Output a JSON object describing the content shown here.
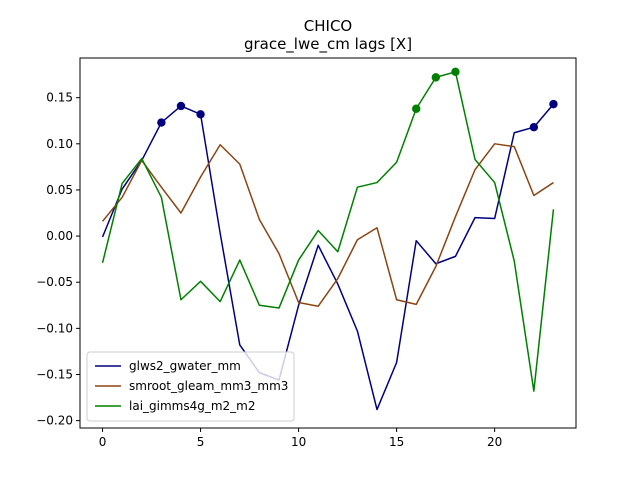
{
  "chart_data": {
    "type": "line",
    "title": "CHICO",
    "subtitle": "grace_lwe_cm lags [X]",
    "xlabel": "",
    "ylabel": "",
    "xlim": [
      -1.15,
      24.15
    ],
    "ylim": [
      -0.208,
      0.193
    ],
    "xticks": [
      0,
      5,
      10,
      15,
      20
    ],
    "xtick_labels": [
      "0",
      "5",
      "10",
      "15",
      "20"
    ],
    "yticks": [
      -0.2,
      -0.15,
      -0.1,
      -0.05,
      0.0,
      0.05,
      0.1,
      0.15
    ],
    "ytick_labels": [
      "−0.20",
      "−0.15",
      "−0.10",
      "−0.05",
      "0.00",
      "0.05",
      "0.10",
      "0.15"
    ],
    "grid": false,
    "legend_position": "lower-left",
    "x": [
      0,
      1,
      2,
      3,
      4,
      5,
      6,
      7,
      8,
      9,
      10,
      11,
      12,
      13,
      14,
      15,
      16,
      17,
      18,
      19,
      20,
      21,
      22,
      23
    ],
    "series": [
      {
        "name": "glws2_gwater_mm",
        "color": "#000080",
        "values": [
          -0.001,
          0.051,
          0.082,
          0.123,
          0.141,
          0.132,
          0.003,
          -0.118,
          -0.148,
          -0.156,
          -0.075,
          -0.01,
          -0.052,
          -0.103,
          -0.188,
          -0.137,
          -0.005,
          -0.03,
          -0.022,
          0.02,
          0.019,
          0.112,
          0.118,
          0.143
        ],
        "markers": [
          3,
          4,
          5,
          22,
          23
        ]
      },
      {
        "name": "smroot_gleam_mm3_mm3",
        "color": "#8B4513",
        "values": [
          0.016,
          0.042,
          0.082,
          0.053,
          0.025,
          0.064,
          0.099,
          0.078,
          0.018,
          -0.019,
          -0.072,
          -0.076,
          -0.046,
          -0.004,
          0.009,
          -0.069,
          -0.074,
          -0.033,
          0.021,
          0.072,
          0.1,
          0.097,
          0.044,
          0.058
        ],
        "markers": []
      },
      {
        "name": "lai_gimms4g_m2_m2",
        "color": "#008000",
        "values": [
          -0.029,
          0.057,
          0.084,
          0.042,
          -0.069,
          -0.049,
          -0.071,
          -0.026,
          -0.075,
          -0.078,
          -0.026,
          0.006,
          -0.017,
          0.053,
          0.058,
          0.08,
          0.138,
          0.172,
          0.178,
          0.083,
          0.058,
          -0.027,
          -0.168,
          0.029
        ],
        "markers": [
          16,
          17,
          18
        ]
      }
    ]
  }
}
